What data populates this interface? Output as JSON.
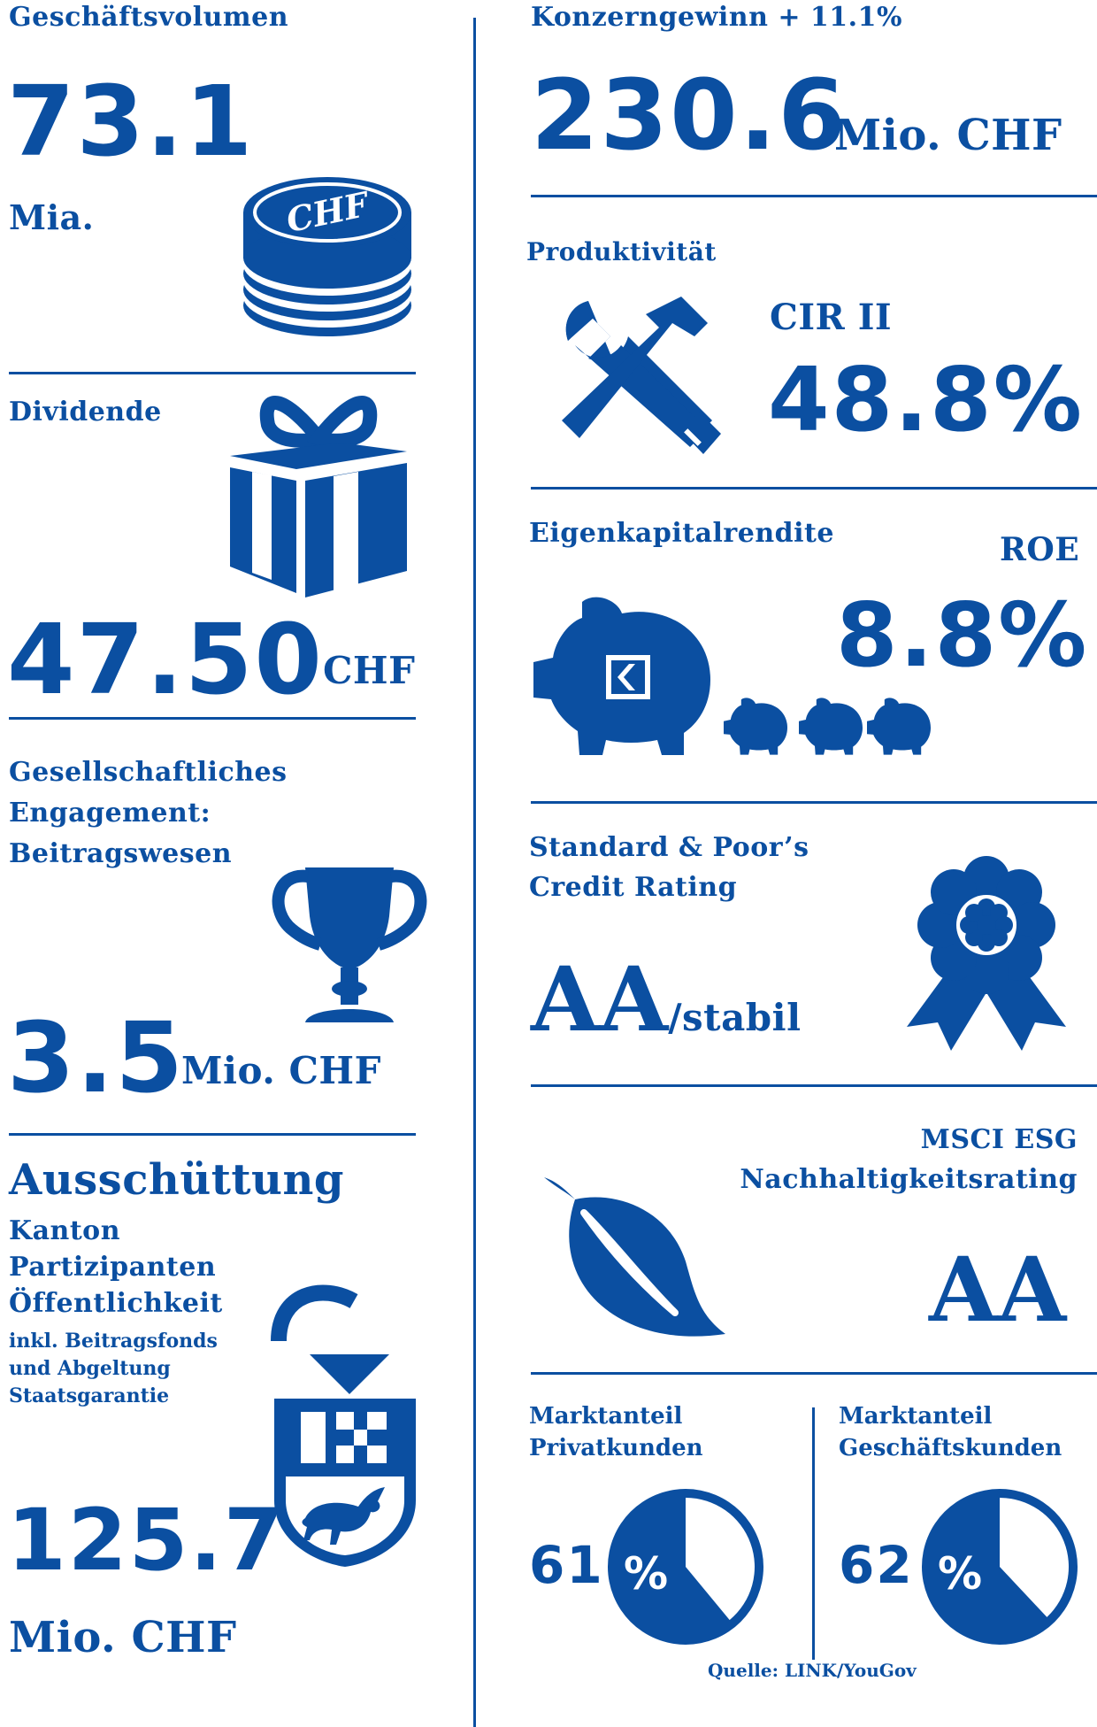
{
  "colors": {
    "primary": "#0b4fa1",
    "background": "#ffffff"
  },
  "left": {
    "volume": {
      "label": "Geschäftsvolumen",
      "value": "73.1",
      "unit": "Mia.",
      "icon": "coin-stack-icon",
      "coin_text": "CHF"
    },
    "dividend": {
      "label": "Dividende",
      "value": "47.50",
      "unit": "CHF",
      "icon": "gift-icon"
    },
    "engagement": {
      "label_lines": [
        "Gesellschaftliches",
        "Engagement:",
        "Beitragswesen"
      ],
      "value": "3.5",
      "unit": "Mio. CHF",
      "icon": "trophy-icon"
    },
    "payout": {
      "title": "Ausschüttung",
      "lines": [
        "Kanton",
        "Partizipanten",
        "Öffentlichkeit"
      ],
      "small_lines": [
        "inkl. Beitragsfonds",
        "und Abgeltung",
        "Staatsgarantie"
      ],
      "value": "125.7",
      "unit": "Mio. CHF",
      "icon": "canton-coat-of-arms-icon"
    }
  },
  "right": {
    "profit": {
      "label": "Konzerngewinn + 11.1%",
      "value": "230.6",
      "unit": "Mio. CHF"
    },
    "productivity": {
      "label": "Produktivität",
      "metric": "CIR II",
      "value": "48.8%",
      "icon": "tools-icon"
    },
    "equity": {
      "label": "Eigenkapitalrendite",
      "metric": "ROE",
      "value": "8.8%",
      "icon": "piggy-bank-icon"
    },
    "rating": {
      "label_lines": [
        "Standard & Poor’s",
        "Credit Rating"
      ],
      "value": "AA",
      "suffix": "/stabil",
      "icon": "rosette-icon"
    },
    "esg": {
      "label_lines": [
        "MSCI ESG",
        "Nachhaltigkeitsrating"
      ],
      "value": "AA",
      "icon": "leaf-icon"
    },
    "market": {
      "private": {
        "label_lines": [
          "Marktanteil",
          "Privatkunden"
        ],
        "value": "61",
        "percent_sign": "%",
        "share": 0.61
      },
      "business": {
        "label_lines": [
          "Marktanteil",
          "Geschäftskunden"
        ],
        "value": "62",
        "percent_sign": "%",
        "share": 0.62
      },
      "source": "Quelle: LINK/YouGov"
    }
  }
}
